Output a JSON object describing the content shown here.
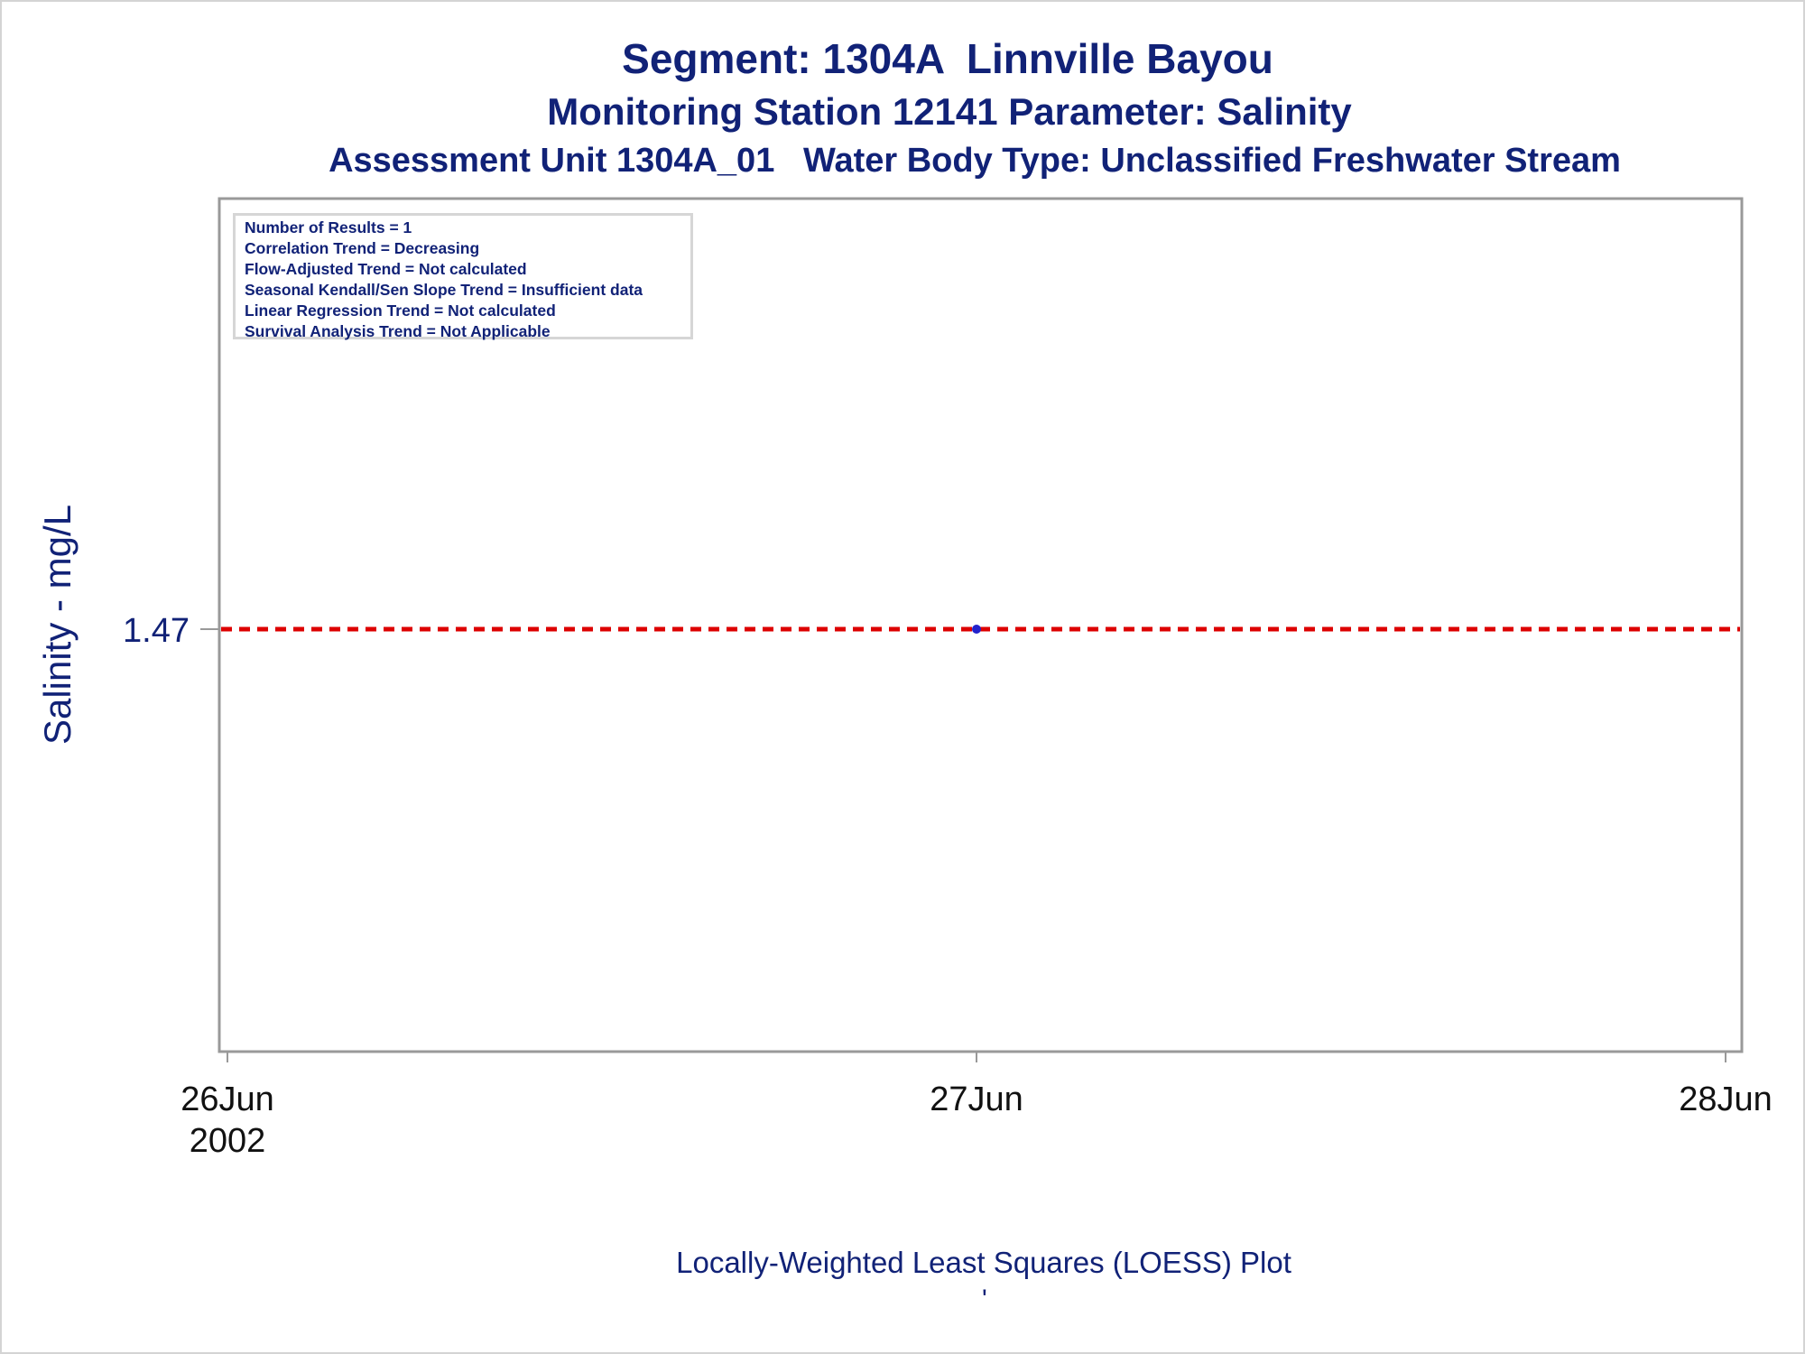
{
  "titles": {
    "line1": "Segment: 1304A  Linnville Bayou",
    "line2": "Monitoring Station 12141 Parameter: Salinity",
    "line3": "Assessment Unit 1304A_01   Water Body Type: Unclassified Freshwater Stream"
  },
  "stats_box": [
    "Number of Results = 1",
    "Correlation Trend = Decreasing",
    "Flow-Adjusted Trend = Not calculated",
    "Seasonal Kendall/Sen Slope Trend = Insufficient data",
    "Linear Regression Trend = Not calculated",
    "Survival Analysis Trend = Not Applicable"
  ],
  "footnote": "'",
  "colors": {
    "text": "#112277",
    "point": "#2222cc",
    "trend_line": "#dd0000",
    "axis": "#999999"
  },
  "chart_data": {
    "type": "scatter",
    "title": "Segment: 1304A  Linnville Bayou",
    "xlabel": "Locally-Weighted Least Squares (LOESS) Plot",
    "ylabel": "Salinity - mg/L",
    "x_ticks": [
      {
        "value": "2002-06-26",
        "label": "26Jun",
        "sublabel": "2002"
      },
      {
        "value": "2002-06-27",
        "label": "27Jun",
        "sublabel": ""
      },
      {
        "value": "2002-06-28",
        "label": "28Jun",
        "sublabel": ""
      }
    ],
    "y_ticks": [
      1.47
    ],
    "xlim": [
      "2002-06-26",
      "2002-06-28"
    ],
    "points": [
      {
        "x": "2002-06-27",
        "y": 1.47
      }
    ],
    "trend_line": {
      "style": "dashed",
      "y": 1.47
    },
    "grid": false
  }
}
